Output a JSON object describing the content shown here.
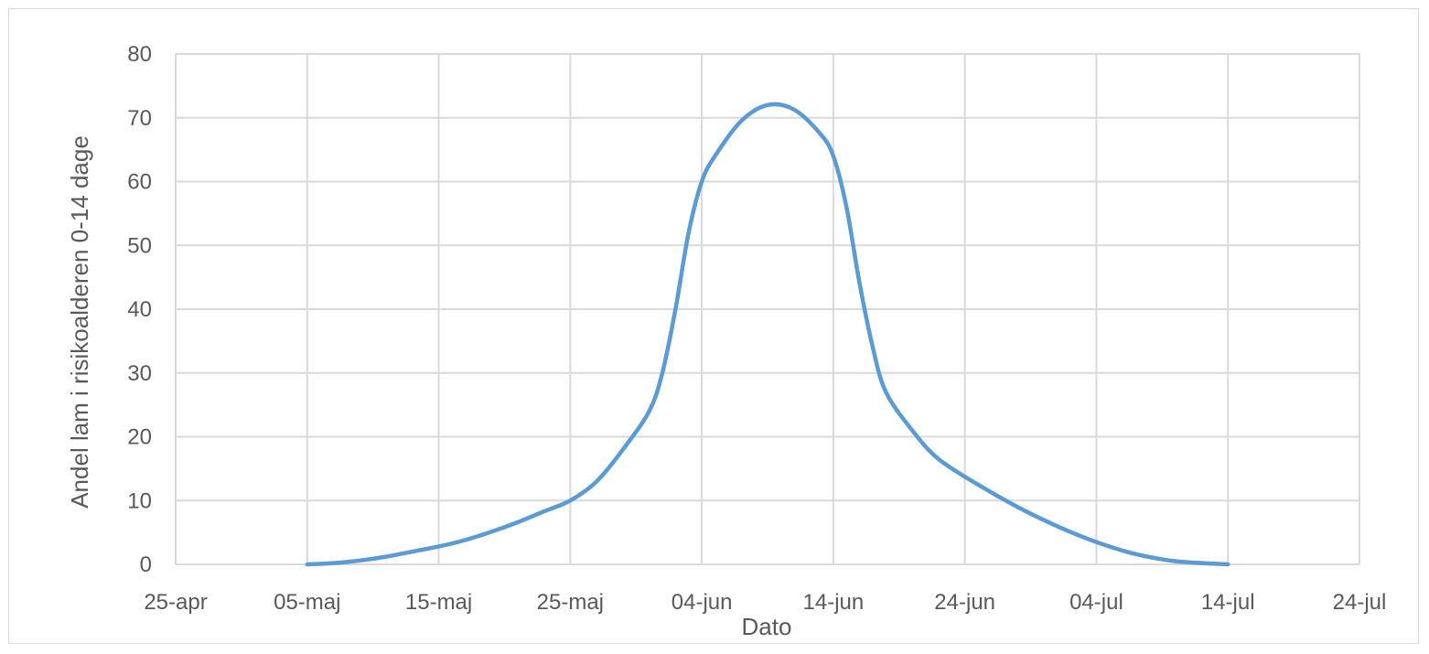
{
  "chart_data": {
    "type": "line",
    "title": "",
    "xlabel": "Dato",
    "ylabel": "Andel lam i risikoalderen 0-14 dage",
    "x_tick_labels": [
      "25-apr",
      "05-maj",
      "15-maj",
      "25-maj",
      "04-jun",
      "14-jun",
      "24-jun",
      "04-jul",
      "14-jul",
      "24-jul"
    ],
    "y_tick_labels": [
      "0",
      "10",
      "20",
      "30",
      "40",
      "50",
      "60",
      "70",
      "80"
    ],
    "xlim": [
      "25-apr",
      "24-jul"
    ],
    "ylim": [
      0,
      80
    ],
    "grid": true,
    "legend": "none",
    "series": [
      {
        "color": "#5b9bd5",
        "points": [
          [
            "05-maj",
            0.0
          ],
          [
            "07-maj",
            0.2
          ],
          [
            "09-maj",
            0.6
          ],
          [
            "11-maj",
            1.2
          ],
          [
            "13-maj",
            2.0
          ],
          [
            "15-maj",
            2.8
          ],
          [
            "17-maj",
            3.8
          ],
          [
            "19-maj",
            5.1
          ],
          [
            "21-maj",
            6.6
          ],
          [
            "23-maj",
            8.3
          ],
          [
            "25-maj",
            10.0
          ],
          [
            "27-maj",
            13.0
          ],
          [
            "29-maj",
            18.0
          ],
          [
            "31-maj",
            24.0
          ],
          [
            "01-jun",
            30.0
          ],
          [
            "02-jun",
            40.0
          ],
          [
            "03-jun",
            52.0
          ],
          [
            "04-jun",
            60.0
          ],
          [
            "05-jun",
            64.0
          ],
          [
            "07-jun",
            69.5
          ],
          [
            "09-jun",
            72.0
          ],
          [
            "11-jun",
            71.3
          ],
          [
            "13-jun",
            67.5
          ],
          [
            "14-jun",
            64.0
          ],
          [
            "15-jun",
            56.0
          ],
          [
            "16-jun",
            44.0
          ],
          [
            "17-jun",
            34.0
          ],
          [
            "18-jun",
            27.0
          ],
          [
            "20-jun",
            21.0
          ],
          [
            "22-jun",
            16.5
          ],
          [
            "25-jun",
            12.5
          ],
          [
            "28-jun",
            9.0
          ],
          [
            "01-jul",
            6.0
          ],
          [
            "04-jul",
            3.5
          ],
          [
            "07-jul",
            1.6
          ],
          [
            "10-jul",
            0.5
          ],
          [
            "13-jul",
            0.1
          ],
          [
            "14-jul",
            0.0
          ]
        ]
      }
    ]
  }
}
